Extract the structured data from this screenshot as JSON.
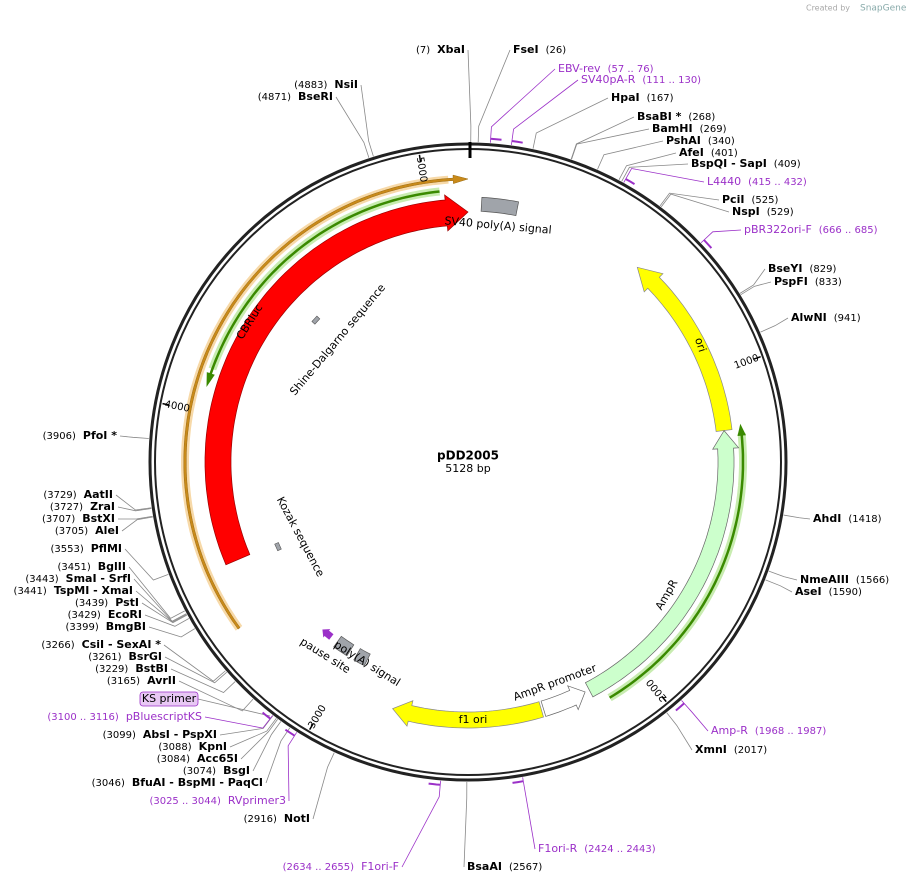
{
  "header": {
    "credit": "Created by",
    "brand": "SnapGene"
  },
  "plasmid": {
    "name": "pDD2005",
    "size": "5128 bp"
  },
  "scale_ticks": [
    "1000",
    "2000",
    "3000",
    "4000",
    "5000"
  ],
  "enzymes": [
    {
      "name": "XbaI",
      "position": "(7)"
    },
    {
      "name": "FseI",
      "position": "(26)"
    },
    {
      "name": "HpaI",
      "position": "(167)"
    },
    {
      "name": "BsaBI *",
      "position": "(268)"
    },
    {
      "name": "BamHI",
      "position": "(269)"
    },
    {
      "name": "PshAI",
      "position": "(340)"
    },
    {
      "name": "AfeI",
      "position": "(401)"
    },
    {
      "name": "BspQI - SapI",
      "position": "(409)"
    },
    {
      "name": "PciI",
      "position": "(525)"
    },
    {
      "name": "NspI",
      "position": "(529)"
    },
    {
      "name": "BseYI",
      "position": "(829)"
    },
    {
      "name": "PspFI",
      "position": "(833)"
    },
    {
      "name": "AlwNI",
      "position": "(941)"
    },
    {
      "name": "AhdI",
      "position": "(1418)"
    },
    {
      "name": "NmeAIII",
      "position": "(1566)"
    },
    {
      "name": "AseI",
      "position": "(1590)"
    },
    {
      "name": "XmnI",
      "position": "(2017)"
    },
    {
      "name": "BsaAI",
      "position": "(2567)"
    },
    {
      "name": "NotI",
      "position": "(2916)"
    },
    {
      "name": "BfuAI - BspMI - PaqCI",
      "position": "(3046)"
    },
    {
      "name": "BsgI",
      "position": "(3074)"
    },
    {
      "name": "Acc65I",
      "position": "(3084)"
    },
    {
      "name": "KpnI",
      "position": "(3088)"
    },
    {
      "name": "AbsI - PspXI",
      "position": "(3099)"
    },
    {
      "name": "AvrII",
      "position": "(3165)"
    },
    {
      "name": "BstBI",
      "position": "(3229)"
    },
    {
      "name": "BsrGI",
      "position": "(3261)"
    },
    {
      "name": "CsiI - SexAI *",
      "position": "(3266)"
    },
    {
      "name": "BmgBI",
      "position": "(3399)"
    },
    {
      "name": "EcoRI",
      "position": "(3429)"
    },
    {
      "name": "PstI",
      "position": "(3439)"
    },
    {
      "name": "TspMI - XmaI",
      "position": "(3441)"
    },
    {
      "name": "SmaI - SrfI",
      "position": "(3443)"
    },
    {
      "name": "BglII",
      "position": "(3451)"
    },
    {
      "name": "PflMI",
      "position": "(3553)"
    },
    {
      "name": "AleI",
      "position": "(3705)"
    },
    {
      "name": "BstXI",
      "position": "(3707)"
    },
    {
      "name": "ZraI",
      "position": "(3727)"
    },
    {
      "name": "AatII",
      "position": "(3729)"
    },
    {
      "name": "PfoI *",
      "position": "(3906)"
    },
    {
      "name": "BseRI",
      "position": "(4871)"
    },
    {
      "name": "NsiI",
      "position": "(4883)"
    }
  ],
  "primers": [
    {
      "name": "EBV-rev",
      "range": "(57 .. 76)"
    },
    {
      "name": "SV40pA-R",
      "range": "(111 .. 130)"
    },
    {
      "name": "L4440",
      "range": "(415 .. 432)"
    },
    {
      "name": "pBR322ori-F",
      "range": "(666 .. 685)"
    },
    {
      "name": "Amp-R",
      "range": "(1968 .. 1987)"
    },
    {
      "name": "F1ori-R",
      "range": "(2424 .. 2443)"
    },
    {
      "name": "F1ori-F",
      "range": "(2634 .. 2655)"
    },
    {
      "name": "RVprimer3",
      "range": "(3025 .. 3044)"
    },
    {
      "name": "pBluescriptKS",
      "range": "(3100 .. 3116)"
    }
  ],
  "features": [
    {
      "label": "SV40 poly(A) signal"
    },
    {
      "label": "Shine-Dalgarno sequence"
    },
    {
      "label": "CBRluc"
    },
    {
      "label": "Kozak sequence"
    },
    {
      "label": "ori"
    },
    {
      "label": "AmpR"
    },
    {
      "label": "AmpR promoter"
    },
    {
      "label": "f1 ori"
    },
    {
      "label": "pause site"
    },
    {
      "label": "poly(A) signal"
    },
    {
      "label": "KS primer"
    }
  ]
}
